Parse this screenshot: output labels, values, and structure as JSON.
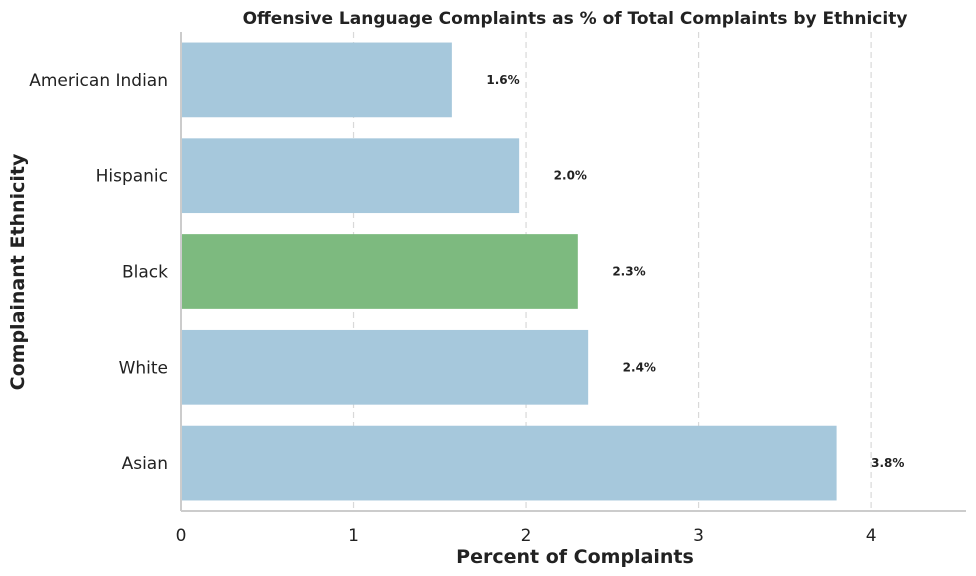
{
  "chart_data": {
    "type": "bar",
    "orientation": "horizontal",
    "title": "Offensive Language Complaints as % of Total Complaints by Ethnicity",
    "xlabel": "Percent of Complaints",
    "ylabel": "Complainant Ethnicity",
    "categories": [
      "American Indian",
      "Hispanic",
      "Black",
      "White",
      "Asian"
    ],
    "values": [
      1.57,
      1.96,
      2.3,
      2.36,
      3.8
    ],
    "data_labels": [
      "1.6%",
      "2.0%",
      "2.3%",
      "2.4%",
      "3.8%"
    ],
    "highlight_index": 2,
    "colors": {
      "bar": "#a6c8dc",
      "highlight": "#7dba7f",
      "grid": "#d9d9d9",
      "axis": "#cccccc"
    },
    "xlim": [
      0,
      4.55
    ],
    "xticks": [
      0,
      1,
      2,
      3,
      4
    ],
    "xtick_labels": [
      "0",
      "1",
      "2",
      "3",
      "4"
    ],
    "grid": "x-dashed",
    "legend": "none"
  }
}
